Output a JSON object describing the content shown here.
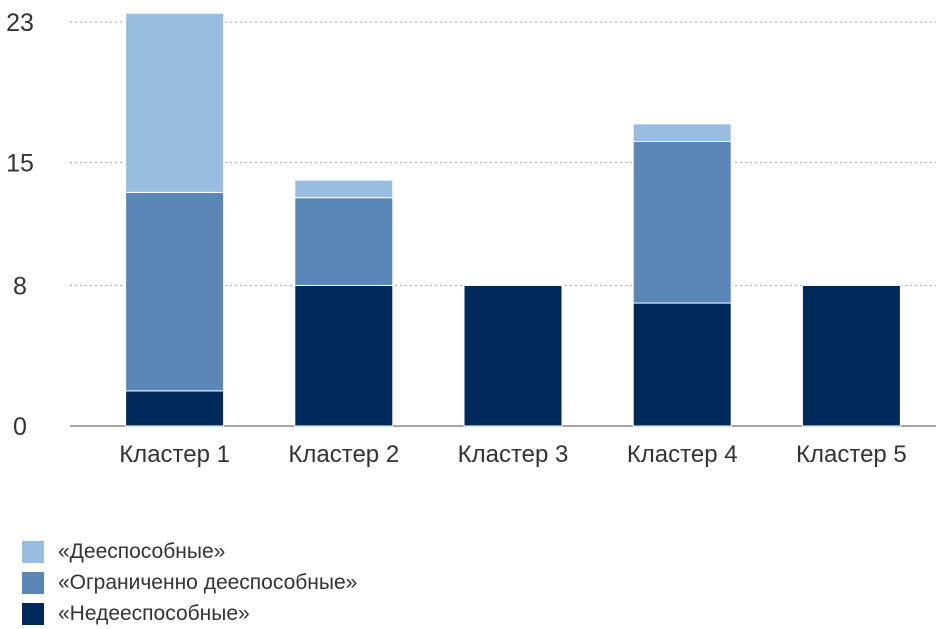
{
  "chart_data": {
    "type": "bar",
    "stacked": true,
    "categories": [
      "Кластер 1",
      "Кластер 2",
      "Кластер 3",
      "Кластер 4",
      "Кластер 5"
    ],
    "series": [
      {
        "name": "«Недееспособные»",
        "color": "#002a5c",
        "values": [
          2,
          8,
          8,
          7,
          8
        ]
      },
      {
        "name": "«Ограниченно дееспособные»",
        "color": "#5b86b8",
        "values": [
          11.3,
          5,
          0,
          9.2,
          0
        ]
      },
      {
        "name": "«Дееспособные»",
        "color": "#99bde0",
        "values": [
          10.2,
          1,
          0,
          1,
          0
        ]
      }
    ],
    "yticks": [
      "0",
      "8",
      "15",
      "23"
    ],
    "ylim": [
      0,
      23
    ],
    "grid": true,
    "legend_position": "bottom-left"
  }
}
